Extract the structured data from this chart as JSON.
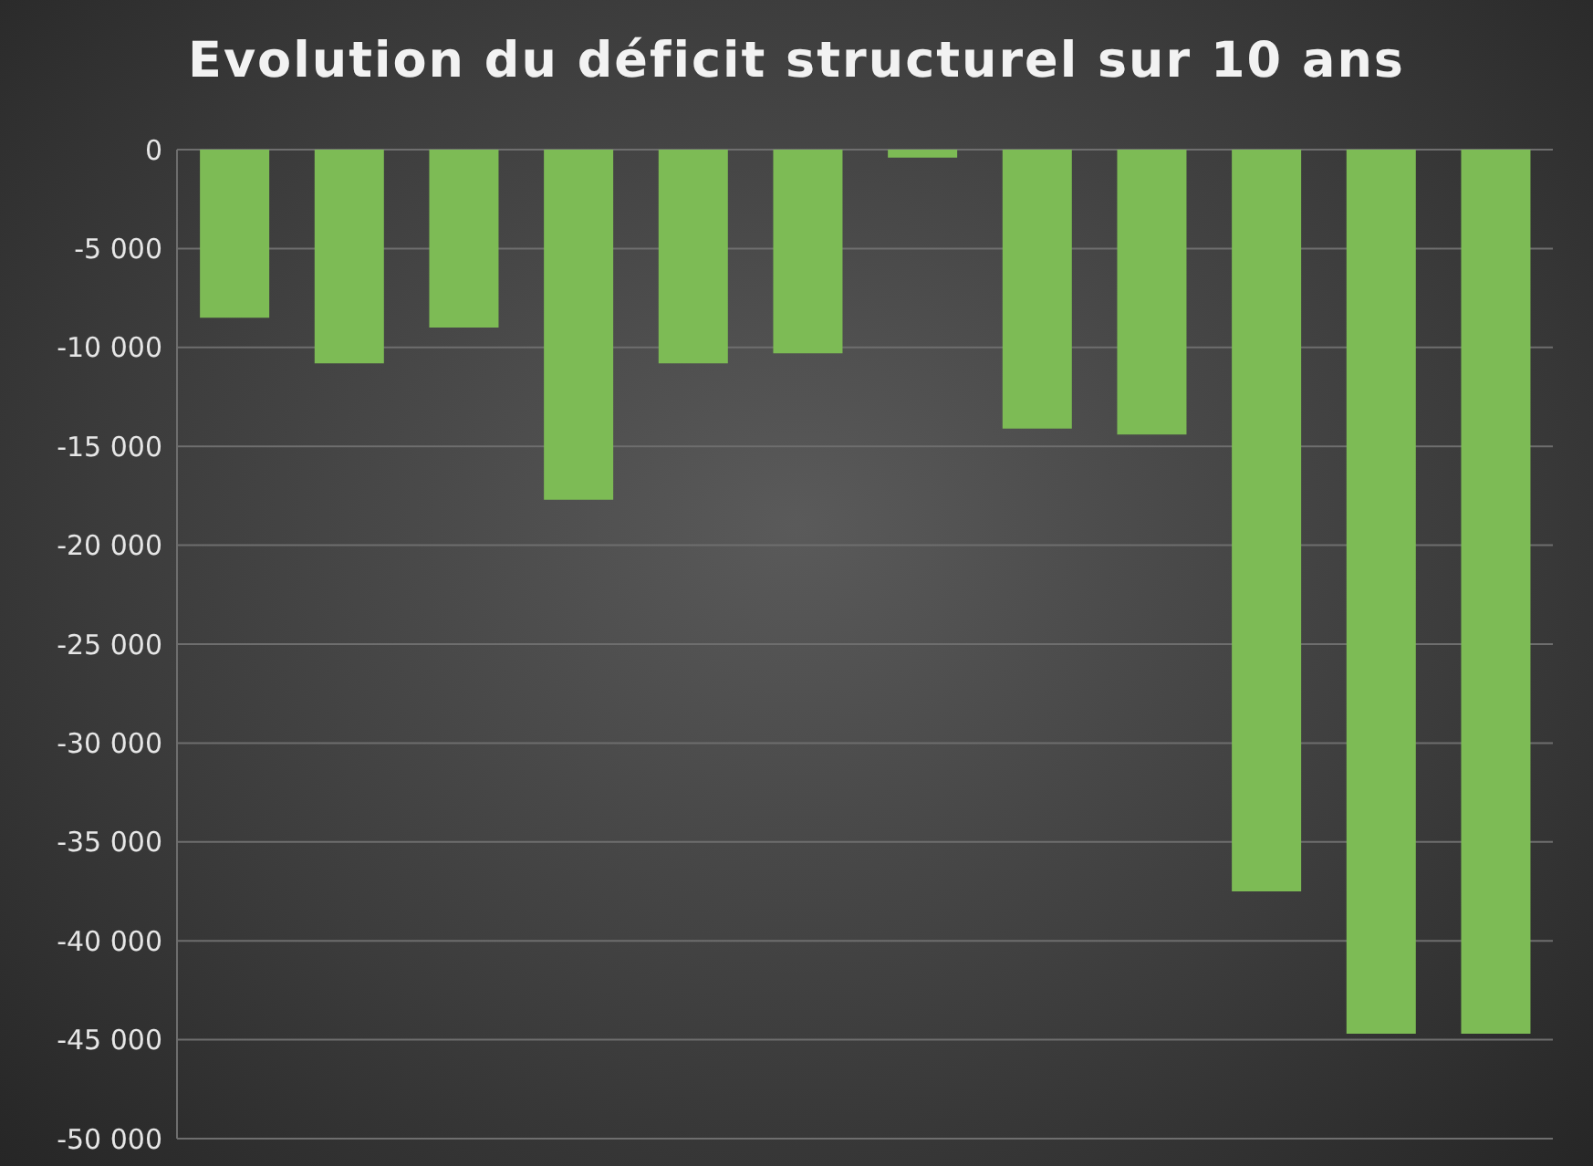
{
  "chart_data": {
    "type": "bar",
    "title": "Evolution du déficit structurel sur 10 ans",
    "categories": [
      null,
      null,
      null,
      null,
      null,
      null,
      null,
      null,
      null,
      null,
      null,
      null
    ],
    "values": [
      -8500,
      -10800,
      -9000,
      -17700,
      -10800,
      -10300,
      -400,
      -14100,
      -14400,
      -37500,
      -44700,
      -44700
    ],
    "color": "#7dbb55",
    "ylim": [
      -50000,
      0
    ],
    "yticks": [
      {
        "value": -50000,
        "label": "-50 000"
      },
      {
        "value": -45000,
        "label": "-45 000"
      },
      {
        "value": -40000,
        "label": "-40 000"
      },
      {
        "value": -35000,
        "label": "-35 000"
      },
      {
        "value": -30000,
        "label": "-30 000"
      },
      {
        "value": -25000,
        "label": "-25 000"
      },
      {
        "value": -20000,
        "label": "-20 000"
      },
      {
        "value": -15000,
        "label": "-15 000"
      },
      {
        "value": -10000,
        "label": "-10 000"
      },
      {
        "value": -5000,
        "label": "-5 000"
      },
      0
    ],
    "grid": "y",
    "legend": false,
    "tick_labels": "y"
  }
}
